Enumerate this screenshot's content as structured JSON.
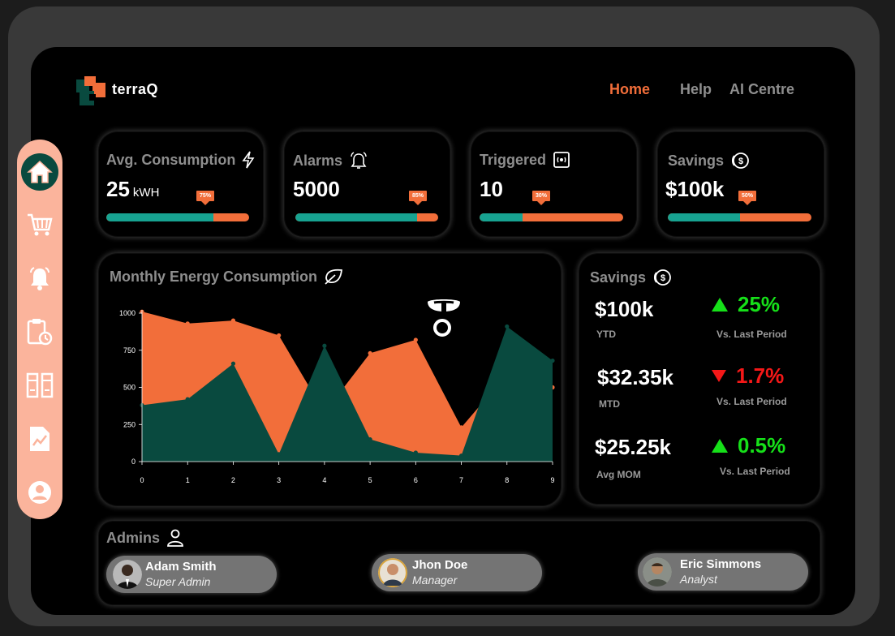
{
  "header": {
    "brand": "terraQ",
    "nav": [
      {
        "label": "Home",
        "active": true
      },
      {
        "label": "Help",
        "active": false
      },
      {
        "label": "AI Centre",
        "active": false
      }
    ]
  },
  "sidebar": {
    "items": [
      {
        "icon": "home-icon",
        "active": true
      },
      {
        "icon": "cart-icon",
        "active": false
      },
      {
        "icon": "bell-icon",
        "active": false
      },
      {
        "icon": "clipboard-clock-icon",
        "active": false
      },
      {
        "icon": "server-icon",
        "active": false
      },
      {
        "icon": "report-icon",
        "active": false
      },
      {
        "icon": "user-icon",
        "active": false
      }
    ]
  },
  "stats": [
    {
      "title": "Avg. Consumption",
      "value": "25",
      "unit": "kWH",
      "percent": 75,
      "badge": "75%",
      "icon": "lightning-icon"
    },
    {
      "title": "Alarms",
      "value": "5000",
      "unit": "",
      "percent": 85,
      "badge": "85%",
      "icon": "alarm-bell-icon"
    },
    {
      "title": "Triggered",
      "value": "10",
      "unit": "",
      "percent": 30,
      "badge": "30%",
      "icon": "broadcast-icon"
    },
    {
      "title": "Savings",
      "value": "$100k",
      "unit": "",
      "percent": 50,
      "badge": "50%",
      "icon": "coin-icon"
    }
  ],
  "chart_panel": {
    "title": "Monthly Energy Consumption",
    "icon": "leaf-icon"
  },
  "chart_data": {
    "type": "area",
    "title": "Monthly Energy Consumption",
    "x": [
      0,
      1,
      2,
      3,
      4,
      5,
      6,
      7,
      8,
      9
    ],
    "xlim": [
      0,
      9
    ],
    "ylim": [
      0,
      1000
    ],
    "yticks": [
      0,
      250,
      500,
      750,
      1000
    ],
    "grid": false,
    "series": [
      {
        "values": [
          1010,
          930,
          950,
          850,
          330,
          730,
          820,
          230,
          590,
          500
        ],
        "color": "#f26e3a"
      },
      {
        "values": [
          380,
          420,
          660,
          50,
          780,
          150,
          60,
          40,
          910,
          680
        ],
        "color": "#094a3f"
      }
    ]
  },
  "savings_panel": {
    "title": "Savings",
    "icon": "coin-icon",
    "rows": [
      {
        "value": "$100k",
        "label": "YTD",
        "change": "25%",
        "direction": "up",
        "change_label": "Vs. Last Period"
      },
      {
        "value": "$32.35k",
        "label": "MTD",
        "change": "1.7%",
        "direction": "down",
        "change_label": "Vs. Last Period"
      },
      {
        "value": "$25.25k",
        "label": "Avg MOM",
        "change": "0.5%",
        "direction": "up",
        "change_label": "Vs. Last Period"
      }
    ]
  },
  "admins_panel": {
    "title": "Admins",
    "icon": "admin-user-icon",
    "users": [
      {
        "name": "Adam Smith",
        "role": "Super Admin"
      },
      {
        "name": "Jhon Doe",
        "role": "Manager"
      },
      {
        "name": "Eric Simmons",
        "role": "Analyst"
      }
    ]
  },
  "colors": {
    "accent": "#f26e3a",
    "teal": "#17a391",
    "dark_green": "#094a3f",
    "sidebar": "#fbb49c",
    "up": "#16e019",
    "down": "#f51818"
  }
}
